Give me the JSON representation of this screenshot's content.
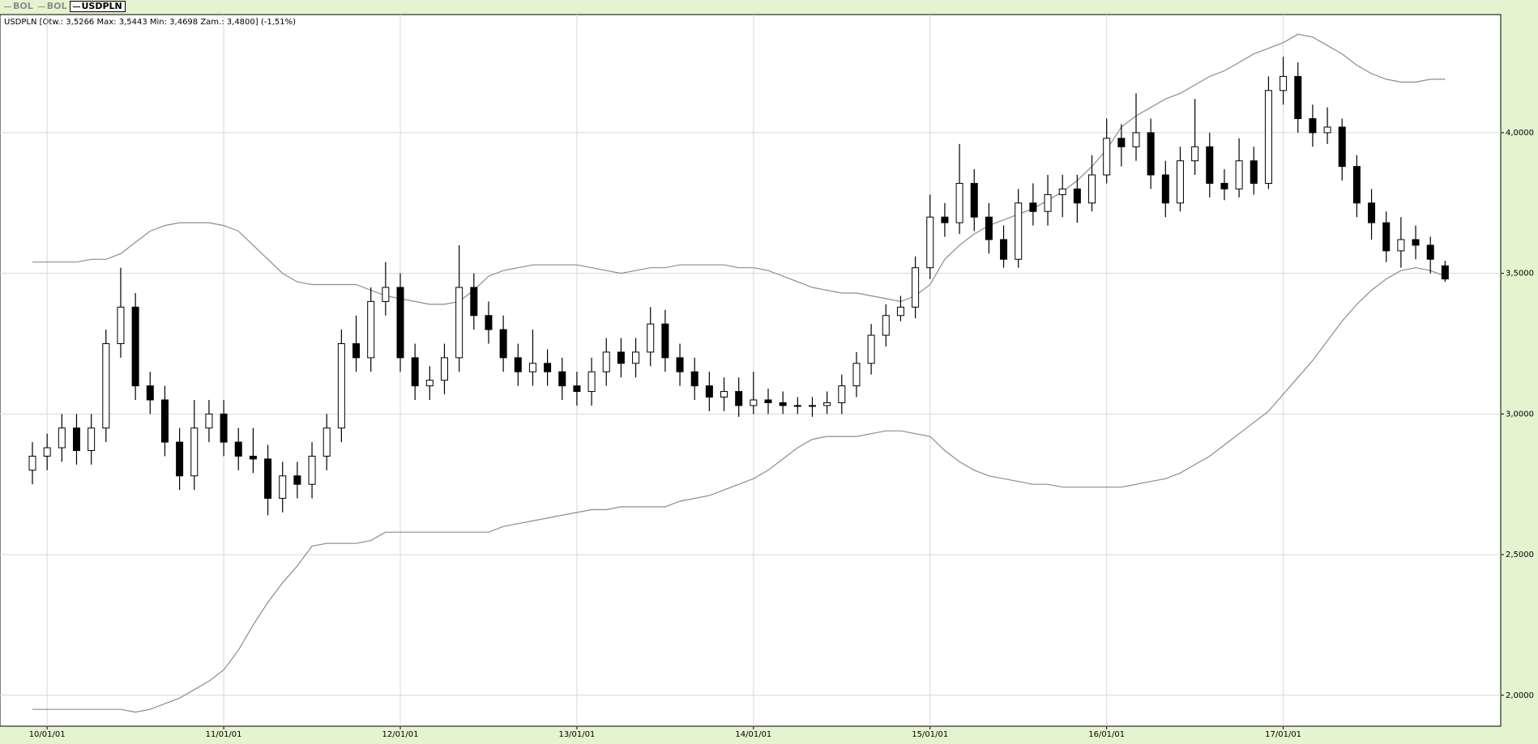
{
  "chart_data": {
    "type": "candlestick",
    "subtitle": "USDPLN [Otw.: 3,5266  Max: 3,5443  Min: 3,4698  Zam.: 3,4800] (-1,51%)",
    "x": [
      "09/12/01",
      "10/01/01",
      "10/02/01",
      "10/03/01",
      "10/04/01",
      "10/05/01",
      "10/06/01",
      "10/07/01",
      "10/08/01",
      "10/09/01",
      "10/10/01",
      "10/11/01",
      "10/12/01",
      "11/01/01",
      "11/02/01",
      "11/03/01",
      "11/04/01",
      "11/05/01",
      "11/06/01",
      "11/07/01",
      "11/08/01",
      "11/09/01",
      "11/10/01",
      "11/11/01",
      "11/12/01",
      "12/01/01",
      "12/02/01",
      "12/03/01",
      "12/04/01",
      "12/05/01",
      "12/06/01",
      "12/07/01",
      "12/08/01",
      "12/09/01",
      "12/10/01",
      "12/11/01",
      "12/12/01",
      "13/01/01",
      "13/02/01",
      "13/03/01",
      "13/04/01",
      "13/05/01",
      "13/06/01",
      "13/07/01",
      "13/08/01",
      "13/09/01",
      "13/10/01",
      "13/11/01",
      "13/12/01",
      "14/01/01",
      "14/02/01",
      "14/03/01",
      "14/04/01",
      "14/05/01",
      "14/06/01",
      "14/07/01",
      "14/08/01",
      "14/09/01",
      "14/10/01",
      "14/11/01",
      "14/12/01",
      "15/01/01",
      "15/02/01",
      "15/03/01",
      "15/04/01",
      "15/05/01",
      "15/06/01",
      "15/07/01",
      "15/08/01",
      "15/09/01",
      "15/10/01",
      "15/11/01",
      "15/12/01",
      "16/01/01",
      "16/02/01",
      "16/03/01",
      "16/04/01",
      "16/05/01",
      "16/06/01",
      "16/07/01",
      "16/08/01",
      "16/09/01",
      "16/10/01",
      "16/11/01",
      "16/12/01",
      "17/01/01",
      "17/02/01",
      "17/03/01",
      "17/04/01",
      "17/05/01",
      "17/06/01",
      "17/07/01",
      "17/08/01",
      "17/09/01",
      "17/10/01",
      "17/11/01",
      "17/12/01"
    ],
    "series": [
      {
        "name": "BOL",
        "color": "#8c8c8c",
        "values": [
          3.54,
          3.54,
          3.54,
          3.54,
          3.55,
          3.55,
          3.57,
          3.61,
          3.65,
          3.67,
          3.68,
          3.68,
          3.68,
          3.67,
          3.65,
          3.6,
          3.55,
          3.5,
          3.47,
          3.46,
          3.46,
          3.46,
          3.46,
          3.44,
          3.42,
          3.41,
          3.4,
          3.39,
          3.39,
          3.4,
          3.44,
          3.49,
          3.51,
          3.52,
          3.53,
          3.53,
          3.53,
          3.53,
          3.52,
          3.51,
          3.5,
          3.51,
          3.52,
          3.52,
          3.53,
          3.53,
          3.53,
          3.53,
          3.52,
          3.52,
          3.51,
          3.49,
          3.47,
          3.45,
          3.44,
          3.43,
          3.43,
          3.42,
          3.41,
          3.4,
          3.42,
          3.46,
          3.55,
          3.6,
          3.64,
          3.67,
          3.69,
          3.71,
          3.73,
          3.76,
          3.79,
          3.83,
          3.88,
          3.94,
          4.02,
          4.06,
          4.09,
          4.12,
          4.14,
          4.17,
          4.2,
          4.22,
          4.25,
          4.28,
          4.3,
          4.32,
          4.35,
          4.34,
          4.31,
          4.28,
          4.24,
          4.21,
          4.19,
          4.18,
          4.18,
          4.19,
          4.19
        ]
      },
      {
        "name": "BOL",
        "color": "#8c8c8c",
        "values": [
          1.95,
          1.95,
          1.95,
          1.95,
          1.95,
          1.95,
          1.95,
          1.94,
          1.95,
          1.97,
          1.99,
          2.02,
          2.05,
          2.09,
          2.16,
          2.25,
          2.33,
          2.4,
          2.46,
          2.53,
          2.54,
          2.54,
          2.54,
          2.55,
          2.58,
          2.58,
          2.58,
          2.58,
          2.58,
          2.58,
          2.58,
          2.58,
          2.6,
          2.61,
          2.62,
          2.63,
          2.64,
          2.65,
          2.66,
          2.66,
          2.67,
          2.67,
          2.67,
          2.67,
          2.69,
          2.7,
          2.71,
          2.73,
          2.75,
          2.77,
          2.8,
          2.84,
          2.88,
          2.91,
          2.92,
          2.92,
          2.92,
          2.93,
          2.94,
          2.94,
          2.93,
          2.92,
          2.87,
          2.83,
          2.8,
          2.78,
          2.77,
          2.76,
          2.75,
          2.75,
          2.74,
          2.74,
          2.74,
          2.74,
          2.74,
          2.75,
          2.76,
          2.77,
          2.79,
          2.82,
          2.85,
          2.89,
          2.93,
          2.97,
          3.01,
          3.07,
          3.13,
          3.19,
          3.26,
          3.33,
          3.39,
          3.44,
          3.48,
          3.51,
          3.52,
          3.51,
          3.49
        ]
      },
      {
        "name": "USDPLN",
        "color": "#000000",
        "open": [
          2.8,
          2.85,
          2.88,
          2.95,
          2.87,
          2.95,
          3.25,
          3.38,
          3.1,
          3.05,
          2.9,
          2.78,
          2.95,
          3.0,
          2.9,
          2.85,
          2.84,
          2.7,
          2.78,
          2.75,
          2.85,
          2.95,
          3.25,
          3.2,
          3.4,
          3.45,
          3.2,
          3.1,
          3.12,
          3.2,
          3.45,
          3.35,
          3.3,
          3.2,
          3.15,
          3.18,
          3.15,
          3.1,
          3.08,
          3.15,
          3.22,
          3.18,
          3.22,
          3.32,
          3.2,
          3.15,
          3.1,
          3.06,
          3.08,
          3.03,
          3.05,
          3.04,
          3.03,
          3.03,
          3.03,
          3.04,
          3.1,
          3.18,
          3.28,
          3.35,
          3.38,
          3.52,
          3.7,
          3.68,
          3.82,
          3.7,
          3.62,
          3.55,
          3.75,
          3.72,
          3.78,
          3.8,
          3.75,
          3.85,
          3.98,
          3.95,
          4.0,
          3.85,
          3.75,
          3.9,
          3.95,
          3.82,
          3.8,
          3.9,
          3.82,
          4.15,
          4.2,
          4.05,
          4.0,
          4.02,
          3.88,
          3.75,
          3.68,
          3.58,
          3.62,
          3.6,
          3.5266
        ],
        "high": [
          2.9,
          2.93,
          3.0,
          3.0,
          3.0,
          3.3,
          3.52,
          3.43,
          3.15,
          3.1,
          2.95,
          3.05,
          3.05,
          3.05,
          2.95,
          2.95,
          2.89,
          2.83,
          2.83,
          2.9,
          3.0,
          3.3,
          3.35,
          3.45,
          3.54,
          3.5,
          3.25,
          3.17,
          3.25,
          3.6,
          3.5,
          3.4,
          3.35,
          3.25,
          3.3,
          3.23,
          3.2,
          3.15,
          3.2,
          3.27,
          3.27,
          3.27,
          3.38,
          3.37,
          3.25,
          3.2,
          3.15,
          3.13,
          3.13,
          3.15,
          3.09,
          3.08,
          3.06,
          3.06,
          3.08,
          3.14,
          3.22,
          3.32,
          3.39,
          3.42,
          3.56,
          3.78,
          3.75,
          3.96,
          3.87,
          3.75,
          3.67,
          3.8,
          3.82,
          3.85,
          3.85,
          3.85,
          3.92,
          4.05,
          4.03,
          4.14,
          4.05,
          3.9,
          3.95,
          4.12,
          4.0,
          3.87,
          3.98,
          3.95,
          4.2,
          4.27,
          4.25,
          4.1,
          4.09,
          4.05,
          3.92,
          3.8,
          3.72,
          3.7,
          3.67,
          3.63,
          3.5443
        ],
        "low": [
          2.75,
          2.8,
          2.83,
          2.82,
          2.82,
          2.9,
          3.2,
          3.05,
          3.0,
          2.85,
          2.73,
          2.73,
          2.9,
          2.85,
          2.8,
          2.79,
          2.64,
          2.65,
          2.7,
          2.7,
          2.8,
          2.9,
          3.15,
          3.15,
          3.35,
          3.15,
          3.05,
          3.05,
          3.07,
          3.15,
          3.3,
          3.25,
          3.15,
          3.1,
          3.1,
          3.1,
          3.05,
          3.03,
          3.03,
          3.1,
          3.13,
          3.13,
          3.17,
          3.15,
          3.1,
          3.05,
          3.01,
          3.01,
          2.99,
          3.0,
          3.0,
          3.0,
          3.0,
          2.99,
          3.0,
          3.0,
          3.06,
          3.14,
          3.24,
          3.33,
          3.34,
          3.48,
          3.63,
          3.64,
          3.65,
          3.57,
          3.52,
          3.52,
          3.67,
          3.67,
          3.7,
          3.68,
          3.72,
          3.82,
          3.88,
          3.9,
          3.8,
          3.7,
          3.72,
          3.85,
          3.77,
          3.76,
          3.77,
          3.78,
          3.8,
          4.1,
          4.0,
          3.95,
          3.96,
          3.83,
          3.7,
          3.62,
          3.54,
          3.52,
          3.55,
          3.5,
          3.4698
        ],
        "close": [
          2.85,
          2.88,
          2.95,
          2.87,
          2.95,
          3.25,
          3.38,
          3.1,
          3.05,
          2.9,
          2.78,
          2.95,
          3.0,
          2.9,
          2.85,
          2.84,
          2.7,
          2.78,
          2.75,
          2.85,
          2.95,
          3.25,
          3.2,
          3.4,
          3.45,
          3.2,
          3.1,
          3.12,
          3.2,
          3.45,
          3.35,
          3.3,
          3.2,
          3.15,
          3.18,
          3.15,
          3.1,
          3.08,
          3.15,
          3.22,
          3.18,
          3.22,
          3.32,
          3.2,
          3.15,
          3.1,
          3.06,
          3.08,
          3.03,
          3.05,
          3.04,
          3.03,
          3.03,
          3.03,
          3.04,
          3.1,
          3.18,
          3.28,
          3.35,
          3.38,
          3.52,
          3.7,
          3.68,
          3.82,
          3.7,
          3.62,
          3.55,
          3.75,
          3.72,
          3.78,
          3.8,
          3.75,
          3.85,
          3.98,
          3.95,
          4.0,
          3.85,
          3.75,
          3.9,
          3.95,
          3.82,
          3.8,
          3.9,
          3.82,
          4.15,
          4.2,
          4.05,
          4.0,
          4.02,
          3.88,
          3.75,
          3.68,
          3.58,
          3.62,
          3.6,
          3.55,
          3.48
        ]
      }
    ],
    "ylim": [
      1.89,
      4.42
    ],
    "yticks": [
      {
        "value": 2,
        "label": "2,0000"
      },
      {
        "value": 2.5,
        "label": "2,5000"
      },
      {
        "value": 3,
        "label": "3,0000"
      },
      {
        "value": 3.5,
        "label": "3,5000"
      },
      {
        "value": 4,
        "label": "4,0000"
      }
    ],
    "grid": true
  }
}
